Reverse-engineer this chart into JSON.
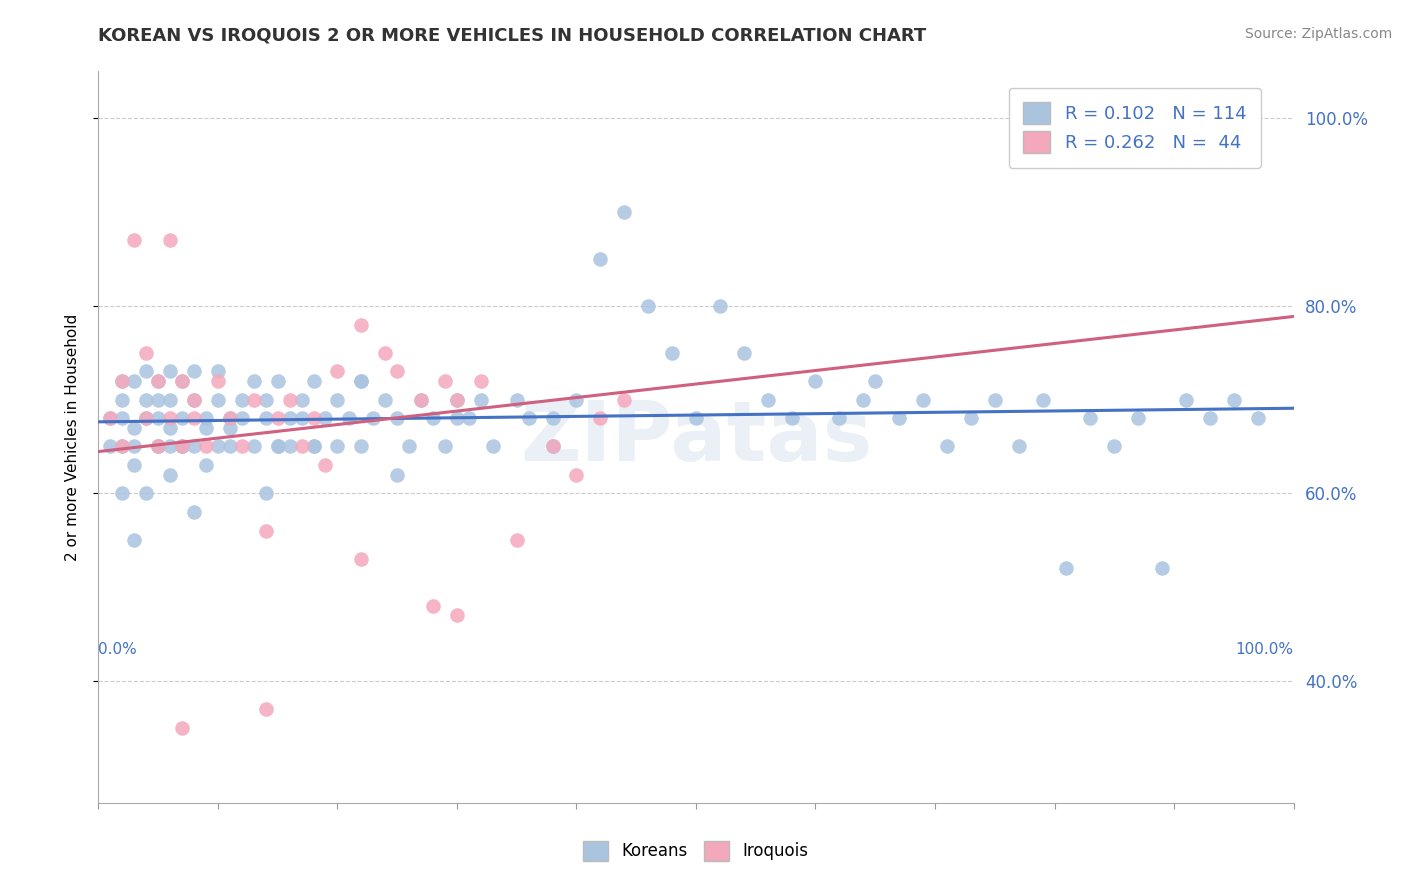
{
  "title": "KOREAN VS IROQUOIS 2 OR MORE VEHICLES IN HOUSEHOLD CORRELATION CHART",
  "source": "Source: ZipAtlas.com",
  "ylabel": "2 or more Vehicles in Household",
  "legend_korean": "Koreans",
  "legend_iroquois": "Iroquois",
  "korean_R": 0.102,
  "korean_N": 114,
  "iroquois_R": 0.262,
  "iroquois_N": 44,
  "korean_color": "#aac4e0",
  "iroquois_color": "#f4a8bc",
  "korean_line_color": "#4472c4",
  "iroquois_line_color": "#d06080",
  "watermark": "ZIPatas",
  "xlim": [
    0.0,
    1.0
  ],
  "ylim": [
    0.27,
    1.05
  ],
  "right_yticks": [
    0.4,
    0.6,
    0.8,
    1.0
  ],
  "legend_R_labels": [
    "R = 0.102   N = 114",
    "R = 0.262   N =  44"
  ],
  "korean_x": [
    0.01,
    0.01,
    0.02,
    0.02,
    0.02,
    0.02,
    0.03,
    0.03,
    0.03,
    0.04,
    0.04,
    0.04,
    0.05,
    0.05,
    0.05,
    0.05,
    0.06,
    0.06,
    0.06,
    0.06,
    0.07,
    0.07,
    0.07,
    0.08,
    0.08,
    0.08,
    0.09,
    0.09,
    0.1,
    0.1,
    0.1,
    0.11,
    0.11,
    0.12,
    0.12,
    0.13,
    0.13,
    0.14,
    0.14,
    0.15,
    0.15,
    0.16,
    0.16,
    0.17,
    0.17,
    0.18,
    0.18,
    0.19,
    0.2,
    0.2,
    0.21,
    0.22,
    0.22,
    0.23,
    0.24,
    0.25,
    0.26,
    0.27,
    0.28,
    0.29,
    0.3,
    0.31,
    0.32,
    0.33,
    0.35,
    0.36,
    0.38,
    0.4,
    0.42,
    0.44,
    0.46,
    0.48,
    0.5,
    0.52,
    0.54,
    0.56,
    0.58,
    0.6,
    0.62,
    0.64,
    0.65,
    0.67,
    0.69,
    0.71,
    0.73,
    0.75,
    0.77,
    0.79,
    0.81,
    0.83,
    0.85,
    0.87,
    0.89,
    0.91,
    0.93,
    0.95,
    0.97,
    0.22,
    0.14,
    0.08,
    0.06,
    0.05,
    0.04,
    0.03,
    0.03,
    0.02,
    0.07,
    0.09,
    0.11,
    0.15,
    0.18,
    0.25,
    0.3,
    0.38
  ],
  "korean_y": [
    0.65,
    0.68,
    0.72,
    0.7,
    0.65,
    0.68,
    0.72,
    0.67,
    0.65,
    0.7,
    0.68,
    0.73,
    0.65,
    0.7,
    0.72,
    0.68,
    0.65,
    0.7,
    0.73,
    0.67,
    0.65,
    0.68,
    0.72,
    0.65,
    0.7,
    0.73,
    0.67,
    0.68,
    0.65,
    0.7,
    0.73,
    0.67,
    0.65,
    0.7,
    0.68,
    0.72,
    0.65,
    0.7,
    0.68,
    0.65,
    0.72,
    0.68,
    0.65,
    0.7,
    0.68,
    0.65,
    0.72,
    0.68,
    0.65,
    0.7,
    0.68,
    0.72,
    0.65,
    0.68,
    0.7,
    0.68,
    0.65,
    0.7,
    0.68,
    0.65,
    0.7,
    0.68,
    0.7,
    0.65,
    0.7,
    0.68,
    0.68,
    0.7,
    0.85,
    0.9,
    0.8,
    0.75,
    0.68,
    0.8,
    0.75,
    0.7,
    0.68,
    0.72,
    0.68,
    0.7,
    0.72,
    0.68,
    0.7,
    0.65,
    0.68,
    0.7,
    0.65,
    0.7,
    0.52,
    0.68,
    0.65,
    0.68,
    0.52,
    0.7,
    0.68,
    0.7,
    0.68,
    0.72,
    0.6,
    0.58,
    0.62,
    0.65,
    0.6,
    0.55,
    0.63,
    0.6,
    0.65,
    0.63,
    0.68,
    0.65,
    0.65,
    0.62,
    0.68,
    0.65
  ],
  "iroquois_x": [
    0.01,
    0.02,
    0.02,
    0.03,
    0.04,
    0.04,
    0.05,
    0.05,
    0.06,
    0.06,
    0.07,
    0.07,
    0.08,
    0.08,
    0.09,
    0.1,
    0.11,
    0.12,
    0.13,
    0.14,
    0.15,
    0.16,
    0.17,
    0.18,
    0.19,
    0.2,
    0.22,
    0.24,
    0.25,
    0.27,
    0.29,
    0.3,
    0.32,
    0.35,
    0.38,
    0.4,
    0.42,
    0.44,
    0.28,
    0.22,
    0.95,
    0.3,
    0.14,
    0.07
  ],
  "iroquois_y": [
    0.68,
    0.72,
    0.65,
    0.87,
    0.75,
    0.68,
    0.72,
    0.65,
    0.87,
    0.68,
    0.72,
    0.65,
    0.7,
    0.68,
    0.65,
    0.72,
    0.68,
    0.65,
    0.7,
    0.56,
    0.68,
    0.7,
    0.65,
    0.68,
    0.63,
    0.73,
    0.78,
    0.75,
    0.73,
    0.7,
    0.72,
    0.7,
    0.72,
    0.55,
    0.65,
    0.62,
    0.68,
    0.7,
    0.48,
    0.53,
    1.0,
    0.47,
    0.37,
    0.35
  ]
}
